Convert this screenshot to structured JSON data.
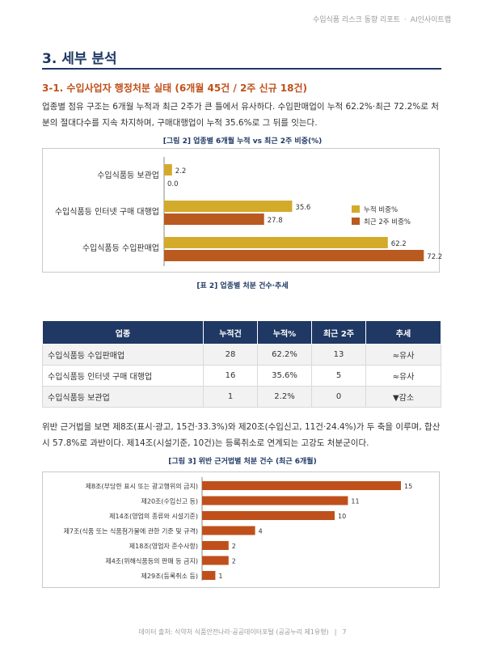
{
  "header": {
    "report": "수입식품 리스크 동향 리포트",
    "dot": "·",
    "brand": "AI인사이트랩"
  },
  "section": {
    "title": "3. 세부 분석"
  },
  "subsection": {
    "title": "3-1. 수입사업자 행정처분 실태 (6개월 45건 / 2주 신규 18건)"
  },
  "paragraph1": "업종별 점유 구조는 6개월 누적과 최근 2주가 큰 틀에서 유사하다. 수입판매업이 누적 62.2%·최근 72.2%로 처분의 절대다수를 지속 차지하며, 구매대행업이 누적 35.6%로 그 뒤를 잇는다.",
  "figure2": {
    "caption": "[그림 2] 업종별 6개월 누적 vs 최근 2주 비중(%)"
  },
  "table2": {
    "caption": "[표 2] 업종별 처분 건수·추세",
    "headers": [
      "업종",
      "누적건",
      "누적%",
      "최근 2주",
      "추세"
    ],
    "rows": [
      [
        "수입식품등 수입판매업",
        "28",
        "62.2%",
        "13",
        "≈유사"
      ],
      [
        "수입식품등 인터넷 구매 대행업",
        "16",
        "35.6%",
        "5",
        "≈유사"
      ],
      [
        "수입식품등 보관업",
        "1",
        "2.2%",
        "0",
        "▼감소"
      ]
    ]
  },
  "paragraph2": "위반 근거법을 보면 제8조(표시·광고, 15건·33.3%)와 제20조(수입신고, 11건·24.4%)가 두 축을 이루며, 합산 시 57.8%로 과반이다. 제14조(시설기준, 10건)는 등록취소로 연계되는 고강도 처분군이다.",
  "figure3": {
    "caption": "[그림 3] 위반 근거법별 처분 건수 (최근 6개월)"
  },
  "footer": {
    "source": "데이터 출처: 식약처 식품안전나라·공공데이터포털 (공공누리 제1유형)",
    "sep": "|",
    "page": "7"
  },
  "colors": {
    "navy": "#1f3864",
    "orange": "#c0501b",
    "gold": "#d4aa2a",
    "rust": "#b95a20",
    "bar3": "#c0501b",
    "down": "#c00000"
  },
  "chart_data": [
    {
      "type": "bar",
      "orientation": "horizontal",
      "categories": [
        "수입식품등 보관업",
        "수입식품등 인터넷 구매 대행업",
        "수입식품등 수입판매업"
      ],
      "series": [
        {
          "name": "누적 비중%",
          "values": [
            2.2,
            35.6,
            62.2
          ]
        },
        {
          "name": "최근 2주 비중%",
          "values": [
            0.0,
            27.8,
            72.2
          ]
        }
      ],
      "xlim": [
        0,
        80
      ],
      "legend": "right"
    },
    {
      "type": "bar",
      "orientation": "horizontal",
      "categories": [
        "제8조(부당한 표시 또는 광고행위의 금지)",
        "제20조(수입신고 등)",
        "제14조(영업의 종류와 시설기준)",
        "제7조(식품 또는 식품첨가물에 관한 기준 및 규격)",
        "제18조(영업자 준수사항)",
        "제4조(위해식품등의 판매 등 금지)",
        "제29조(등록취소 등)"
      ],
      "values": [
        15,
        11,
        10,
        4,
        2,
        2,
        1
      ],
      "xlim": [
        0,
        16
      ]
    }
  ]
}
